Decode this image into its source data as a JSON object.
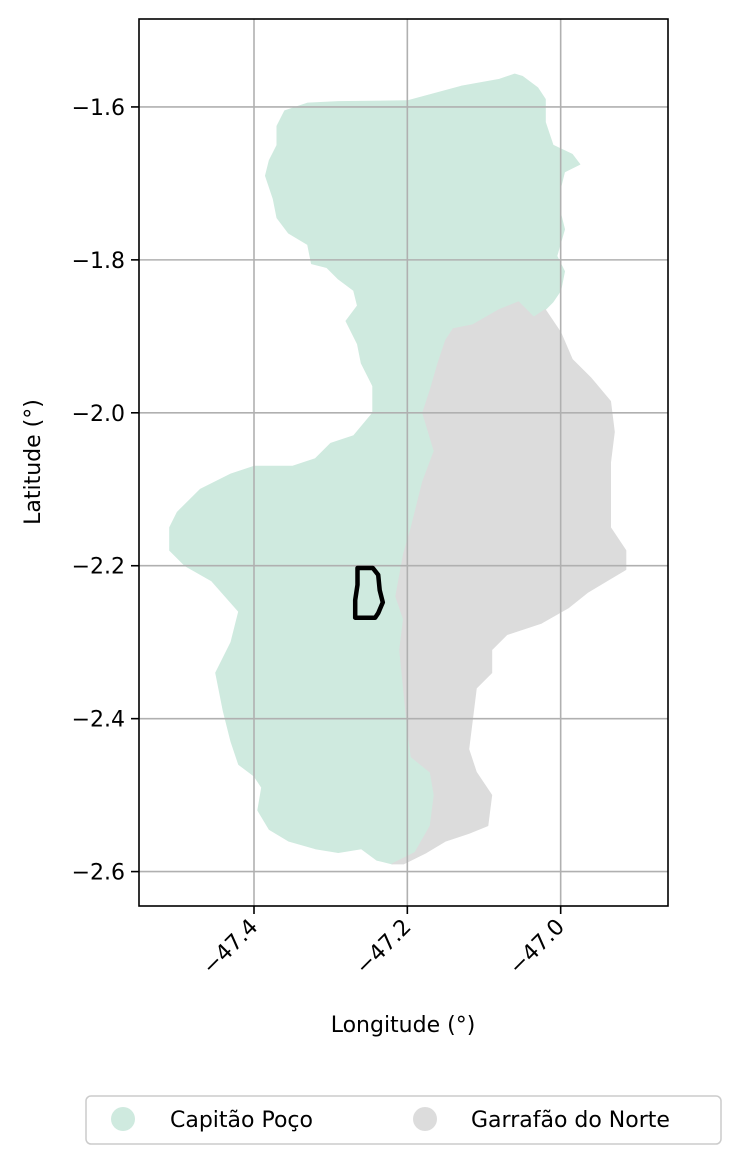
{
  "chart_data": {
    "type": "map",
    "xlabel": "Longitude (°)",
    "ylabel": "Latitude (°)",
    "xlim": [
      -47.55,
      -46.86
    ],
    "ylim": [
      -2.645,
      -1.485
    ],
    "x_ticks": [
      -47.4,
      -47.2,
      -47.0
    ],
    "x_tick_labels": [
      "−47.4",
      "−47.2",
      "−47.0"
    ],
    "y_ticks": [
      -1.6,
      -1.8,
      -2.0,
      -2.2,
      -2.4,
      -2.6
    ],
    "y_tick_labels": [
      "−1.6",
      "−1.8",
      "−2.0",
      "−2.2",
      "−2.4",
      "−2.6"
    ],
    "grid": true,
    "legend_position": "bottom-center",
    "series": [
      {
        "name": "Capitão Poço",
        "color": "#cfeadf",
        "outline": [
          [
            -47.29,
            -1.593
          ],
          [
            -47.2,
            -1.592
          ],
          [
            -47.13,
            -1.573
          ],
          [
            -47.08,
            -1.564
          ],
          [
            -47.06,
            -1.557
          ],
          [
            -47.05,
            -1.56
          ],
          [
            -47.03,
            -1.575
          ],
          [
            -47.02,
            -1.59
          ],
          [
            -47.02,
            -1.62
          ],
          [
            -47.01,
            -1.65
          ],
          [
            -46.985,
            -1.662
          ],
          [
            -46.975,
            -1.675
          ],
          [
            -46.995,
            -1.685
          ],
          [
            -47.0,
            -1.705
          ],
          [
            -47.0,
            -1.74
          ],
          [
            -46.995,
            -1.76
          ],
          [
            -47.005,
            -1.795
          ],
          [
            -46.995,
            -1.815
          ],
          [
            -47.0,
            -1.84
          ],
          [
            -47.01,
            -1.855
          ],
          [
            -47.02,
            -1.865
          ],
          [
            -47.035,
            -1.875
          ],
          [
            -47.055,
            -1.855
          ],
          [
            -47.08,
            -1.865
          ],
          [
            -47.115,
            -1.885
          ],
          [
            -47.14,
            -1.89
          ],
          [
            -47.15,
            -1.905
          ],
          [
            -47.16,
            -1.935
          ],
          [
            -47.17,
            -1.97
          ],
          [
            -47.18,
            -2.0
          ],
          [
            -47.165,
            -2.05
          ],
          [
            -47.18,
            -2.09
          ],
          [
            -47.195,
            -2.15
          ],
          [
            -47.205,
            -2.185
          ],
          [
            -47.215,
            -2.24
          ],
          [
            -47.205,
            -2.27
          ],
          [
            -47.21,
            -2.31
          ],
          [
            -47.205,
            -2.36
          ],
          [
            -47.2,
            -2.41
          ],
          [
            -47.195,
            -2.45
          ],
          [
            -47.17,
            -2.47
          ],
          [
            -47.165,
            -2.5
          ],
          [
            -47.17,
            -2.54
          ],
          [
            -47.19,
            -2.575
          ],
          [
            -47.22,
            -2.59
          ],
          [
            -47.24,
            -2.585
          ],
          [
            -47.26,
            -2.57
          ],
          [
            -47.29,
            -2.575
          ],
          [
            -47.32,
            -2.57
          ],
          [
            -47.355,
            -2.56
          ],
          [
            -47.38,
            -2.545
          ],
          [
            -47.395,
            -2.52
          ],
          [
            -47.39,
            -2.49
          ],
          [
            -47.4,
            -2.475
          ],
          [
            -47.42,
            -2.46
          ],
          [
            -47.43,
            -2.43
          ],
          [
            -47.44,
            -2.39
          ],
          [
            -47.45,
            -2.34
          ],
          [
            -47.43,
            -2.3
          ],
          [
            -47.42,
            -2.26
          ],
          [
            -47.455,
            -2.22
          ],
          [
            -47.49,
            -2.2
          ],
          [
            -47.51,
            -2.18
          ],
          [
            -47.51,
            -2.15
          ],
          [
            -47.5,
            -2.13
          ],
          [
            -47.47,
            -2.1
          ],
          [
            -47.43,
            -2.08
          ],
          [
            -47.4,
            -2.07
          ],
          [
            -47.35,
            -2.07
          ],
          [
            -47.32,
            -2.06
          ],
          [
            -47.3,
            -2.04
          ],
          [
            -47.27,
            -2.03
          ],
          [
            -47.245,
            -2.0
          ],
          [
            -47.245,
            -1.965
          ],
          [
            -47.26,
            -1.935
          ],
          [
            -47.265,
            -1.91
          ],
          [
            -47.28,
            -1.88
          ],
          [
            -47.265,
            -1.86
          ],
          [
            -47.27,
            -1.84
          ],
          [
            -47.29,
            -1.825
          ],
          [
            -47.305,
            -1.81
          ],
          [
            -47.325,
            -1.805
          ],
          [
            -47.33,
            -1.78
          ],
          [
            -47.355,
            -1.765
          ],
          [
            -47.37,
            -1.745
          ],
          [
            -47.375,
            -1.72
          ],
          [
            -47.385,
            -1.69
          ],
          [
            -47.38,
            -1.67
          ],
          [
            -47.37,
            -1.65
          ],
          [
            -47.37,
            -1.625
          ],
          [
            -47.36,
            -1.605
          ],
          [
            -47.33,
            -1.595
          ]
        ]
      },
      {
        "name": "Garrafão do Norte",
        "color": "#dcdcdc",
        "outline": [
          [
            -47.035,
            -1.875
          ],
          [
            -47.02,
            -1.865
          ],
          [
            -47.0,
            -1.895
          ],
          [
            -46.985,
            -1.93
          ],
          [
            -46.96,
            -1.955
          ],
          [
            -46.935,
            -1.985
          ],
          [
            -46.93,
            -2.025
          ],
          [
            -46.935,
            -2.065
          ],
          [
            -46.935,
            -2.1
          ],
          [
            -46.935,
            -2.15
          ],
          [
            -46.915,
            -2.18
          ],
          [
            -46.915,
            -2.205
          ],
          [
            -46.94,
            -2.22
          ],
          [
            -46.965,
            -2.235
          ],
          [
            -46.99,
            -2.255
          ],
          [
            -47.025,
            -2.275
          ],
          [
            -47.07,
            -2.29
          ],
          [
            -47.09,
            -2.31
          ],
          [
            -47.09,
            -2.34
          ],
          [
            -47.11,
            -2.36
          ],
          [
            -47.115,
            -2.4
          ],
          [
            -47.12,
            -2.44
          ],
          [
            -47.11,
            -2.47
          ],
          [
            -47.09,
            -2.5
          ],
          [
            -47.095,
            -2.54
          ],
          [
            -47.12,
            -2.55
          ],
          [
            -47.15,
            -2.56
          ],
          [
            -47.175,
            -2.575
          ],
          [
            -47.205,
            -2.59
          ],
          [
            -47.22,
            -2.59
          ],
          [
            -47.19,
            -2.575
          ],
          [
            -47.17,
            -2.54
          ],
          [
            -47.165,
            -2.5
          ],
          [
            -47.17,
            -2.47
          ],
          [
            -47.195,
            -2.45
          ],
          [
            -47.2,
            -2.41
          ],
          [
            -47.205,
            -2.36
          ],
          [
            -47.21,
            -2.31
          ],
          [
            -47.205,
            -2.27
          ],
          [
            -47.215,
            -2.24
          ],
          [
            -47.205,
            -2.185
          ],
          [
            -47.195,
            -2.15
          ],
          [
            -47.18,
            -2.09
          ],
          [
            -47.165,
            -2.05
          ],
          [
            -47.18,
            -2.0
          ],
          [
            -47.17,
            -1.97
          ],
          [
            -47.16,
            -1.935
          ],
          [
            -47.15,
            -1.905
          ],
          [
            -47.14,
            -1.89
          ],
          [
            -47.115,
            -1.885
          ],
          [
            -47.08,
            -1.865
          ],
          [
            -47.055,
            -1.855
          ]
        ]
      }
    ],
    "highlight_outline": {
      "color": "#000000",
      "points": [
        [
          -47.258,
          -2.203
        ],
        [
          -47.245,
          -2.203
        ],
        [
          -47.238,
          -2.212
        ],
        [
          -47.236,
          -2.232
        ],
        [
          -47.232,
          -2.248
        ],
        [
          -47.238,
          -2.262
        ],
        [
          -47.242,
          -2.268
        ],
        [
          -47.268,
          -2.268
        ],
        [
          -47.268,
          -2.245
        ],
        [
          -47.265,
          -2.225
        ],
        [
          -47.265,
          -2.203
        ]
      ]
    }
  }
}
